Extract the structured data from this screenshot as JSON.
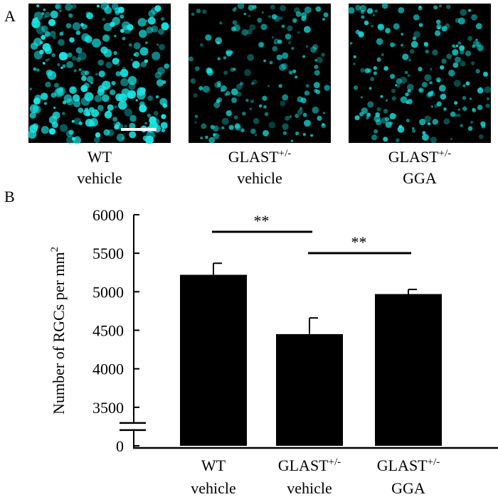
{
  "panels": {
    "a": "A",
    "b": "B"
  },
  "images": [
    {
      "line1": "WT",
      "line2": "vehicle"
    },
    {
      "line1": "GLAST",
      "sup": "+/-",
      "line2": "vehicle"
    },
    {
      "line1": "GLAST",
      "sup": "+/-",
      "line2": "GGA"
    }
  ],
  "chart_data": {
    "type": "bar",
    "ylabel": {
      "text": "Number of RGCs per mm",
      "sup": "2"
    },
    "categories": [
      {
        "line1": "WT",
        "line2": "vehicle"
      },
      {
        "line1": "GLAST",
        "sup": "+/-",
        "line2": "vehicle"
      },
      {
        "line1": "GLAST",
        "sup": "+/-",
        "line2": "GGA"
      }
    ],
    "values": [
      5220,
      4450,
      4970
    ],
    "errors": [
      150,
      210,
      60
    ],
    "color": "#000000",
    "ylim": [
      0,
      6000
    ],
    "yticks": [
      0,
      3500,
      4000,
      4500,
      5000,
      5500,
      6000
    ],
    "axis_break": true,
    "significance": [
      {
        "label": "**",
        "between": [
          0,
          1
        ]
      },
      {
        "label": "**",
        "between": [
          1,
          2
        ]
      }
    ]
  }
}
